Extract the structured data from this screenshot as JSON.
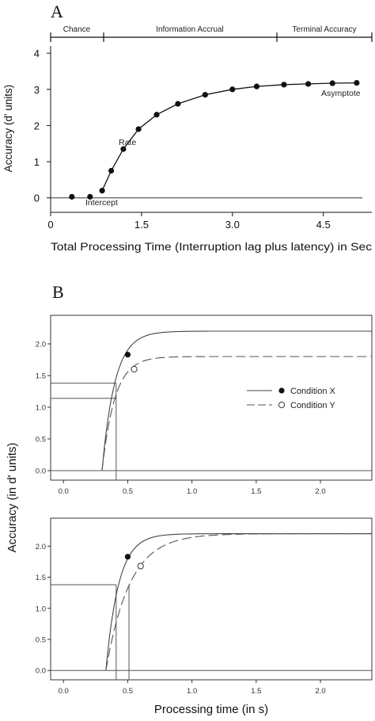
{
  "chart_data": [
    {
      "panel_label": "A",
      "type": "line",
      "xlabel": "Total Processing Time (Interruption lag plus latency) in Sec",
      "ylabel": "Accuracy (d' units)",
      "xlim": [
        0,
        5.3
      ],
      "ylim": [
        -0.4,
        4.2
      ],
      "xticks": [
        "0",
        "1.5",
        "3.0",
        "4.5"
      ],
      "yticks": [
        "0",
        "1",
        "2",
        "3",
        "4"
      ],
      "phases": [
        "Chance",
        "Information Accrual",
        "Terminal Accuracy"
      ],
      "annotations": [
        "Asymptote",
        "Rate",
        "Intercept"
      ],
      "series": [
        {
          "x": [
            0.35,
            0.65,
            0.85,
            1.0,
            1.2,
            1.45,
            1.75,
            2.1,
            2.55,
            3.0,
            3.4,
            3.85,
            4.25,
            4.65,
            5.05
          ],
          "y": [
            0.03,
            0.03,
            0.2,
            0.75,
            1.35,
            1.9,
            2.3,
            2.6,
            2.85,
            3.0,
            3.08,
            3.13,
            3.15,
            3.17,
            3.18
          ]
        }
      ]
    },
    {
      "panel_label": "B",
      "type": "line",
      "xlabel": "Processing time (in s)",
      "ylabel": "Accuracy (in d' units)",
      "xlim": [
        -0.1,
        2.4
      ],
      "ylim": [
        -0.15,
        2.45
      ],
      "xticks": [
        "0.0",
        "0.5",
        "1.0",
        "1.5",
        "2.0"
      ],
      "yticks": [
        "0.0",
        "0.5",
        "1.0",
        "1.5",
        "2.0"
      ],
      "legend": [
        "Condition X",
        "Condition Y"
      ],
      "legend_position": "right",
      "panels": [
        {
          "series": [
            {
              "name": "Condition X",
              "intercept": 0.3,
              "rate": 10,
              "asymptote": 2.2,
              "marker": {
                "x": 0.5,
                "y": 1.83
              }
            },
            {
              "name": "Condition Y",
              "intercept": 0.3,
              "rate": 10,
              "asymptote": 1.8,
              "marker": {
                "x": 0.55,
                "y": 1.6
              }
            }
          ],
          "reference_y": [
            1.38,
            1.14
          ],
          "reference_x": [
            0.41
          ]
        },
        {
          "series": [
            {
              "name": "Condition X",
              "intercept": 0.33,
              "rate": 10,
              "asymptote": 2.2,
              "marker": {
                "x": 0.5,
                "y": 1.83
              }
            },
            {
              "name": "Condition Y",
              "intercept": 0.33,
              "rate": 5.4,
              "asymptote": 2.2,
              "marker": {
                "x": 0.6,
                "y": 1.68
              }
            }
          ],
          "reference_y": [
            1.38
          ],
          "reference_x": [
            0.41,
            0.51
          ]
        }
      ]
    }
  ]
}
